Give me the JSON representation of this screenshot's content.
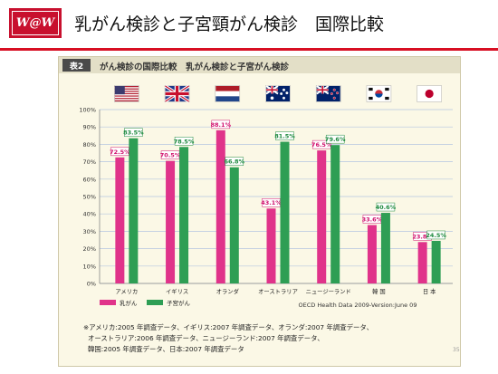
{
  "slide": {
    "logo_text": "W@W",
    "title": "乳がん検診と子宮頸がん検診　国際比較",
    "page_number": "35"
  },
  "panel": {
    "tag": "表2",
    "title": "がん検診の国際比較　乳がん検診と子宮がん検診",
    "source": "OECD Health Data 2009-Version:June 09",
    "footnote_lines": [
      "※アメリカ:2005 年調査データ、イギリス:2007 年調査データ、オランダ:2007 年調査データ、",
      "オーストラリア:2006 年調査データ、ニュージーランド:2007 年調査データ、",
      "韓国:2005 年調査データ、日本:2007 年調査データ"
    ]
  },
  "flags": [
    "us-flag-icon",
    "uk-flag-icon",
    "nl-flag-icon",
    "au-flag-icon",
    "nz-flag-icon",
    "kr-flag-icon",
    "jp-flag-icon"
  ],
  "chart_data": {
    "type": "bar",
    "categories": [
      "アメリカ",
      "イギリス",
      "オランダ",
      "オーストラリア",
      "ニュージーランド",
      "韓 国",
      "日 本"
    ],
    "series": [
      {
        "name": "乳がん",
        "color": "#e0338a",
        "label_color": "#d1136f",
        "values": [
          72.5,
          70.5,
          88.1,
          43.1,
          76.5,
          33.6,
          23.8
        ]
      },
      {
        "name": "子宮がん",
        "color": "#2e9e54",
        "label_color": "#1e8a3f",
        "values": [
          83.5,
          78.5,
          66.8,
          81.5,
          79.6,
          40.6,
          24.5
        ]
      }
    ],
    "ylim": [
      0,
      100
    ],
    "yticks": [
      "0%",
      "10%",
      "20%",
      "30%",
      "40%",
      "50%",
      "60%",
      "70%",
      "80%",
      "90%",
      "100%"
    ],
    "value_suffix": "%",
    "grid": true,
    "legend_position": "bottom-left"
  }
}
